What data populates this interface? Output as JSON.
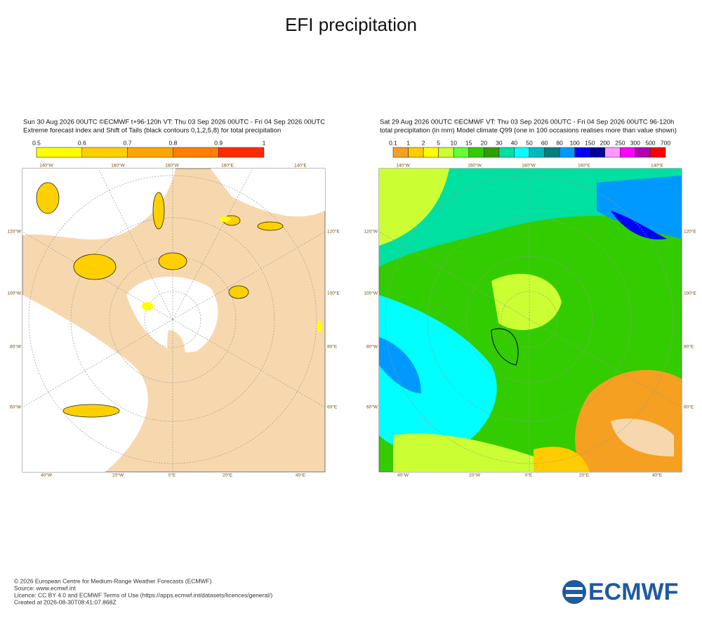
{
  "title": "EFI precipitation",
  "panels": [
    {
      "header": [
        "Sun 30 Aug 2026 00UTC ©ECMWF t+96-120h  VT: Thu 03 Sep 2026 00UTC - Fri 04 Sep 2026 00UTC",
        "Extreme forecast index and Shift of Tails (black contours 0,1,2,5,8) for total precipitation"
      ],
      "colorbar": {
        "labels": [
          "0.5",
          "0.6",
          "0.7",
          "0.8",
          "0.9",
          "1"
        ],
        "colors": [
          "#ffff00",
          "#ffd000",
          "#ffa500",
          "#ff7f00",
          "#ff2a00"
        ]
      },
      "lon_top": [
        "140°W",
        "160°W",
        "180°W",
        "160°E",
        "140°E"
      ],
      "lon_left": [
        "120°W",
        "100°W",
        "80°W",
        "60°W"
      ],
      "lon_right": [
        "120°E",
        "100°E",
        "80°E",
        "60°E"
      ],
      "lon_bottom": [
        "40°W",
        "20°W",
        "0°E",
        "20°E",
        "40°E"
      ]
    },
    {
      "header": [
        "Sat 29 Aug 2026 00UTC ©ECMWF VT: Thu 03 Sep 2026 00UTC - Fri 04 Sep 2026 00UTC   96-120h",
        "total precipitation (in mm)  Model climate Q99 (one in 100 occasions realises more than value shown)"
      ],
      "colorbar": {
        "labels": [
          "0.1",
          "1",
          "2",
          "5",
          "10",
          "15",
          "20",
          "30",
          "40",
          "50",
          "60",
          "80",
          "100",
          "150",
          "200",
          "250",
          "300",
          "500",
          "700"
        ],
        "colors": [
          "#f5a020",
          "#ffcc00",
          "#ffff00",
          "#ccff33",
          "#66ff33",
          "#33cc00",
          "#2f9e00",
          "#00e0a0",
          "#00ffff",
          "#00b8c0",
          "#008080",
          "#0099ff",
          "#0000ff",
          "#000099",
          "#ff99ff",
          "#ff00ff",
          "#b000b0",
          "#ff0000"
        ]
      },
      "lon_top": [
        "140°W",
        "160°W",
        "180°W",
        "160°E",
        "140°E"
      ],
      "lon_left": [
        "120°W",
        "100°W",
        "80°W",
        "60°W"
      ],
      "lon_right": [
        "120°E",
        "100°E",
        "80°E",
        "60°E"
      ],
      "lon_bottom": [
        "40°W",
        "20°W",
        "0°E",
        "20°E",
        "40°E"
      ]
    }
  ],
  "footer": [
    "© 2026 European Centre for Medium-Range Weather Forecasts (ECMWF)",
    "Source: www.ecmwf.int",
    "Licence: CC BY 4.0 and ECMWF Terms of Use (https://apps.ecmwf.int/datasets/licences/general/)",
    "Created at 2026-08-30T08:41:07.868Z"
  ],
  "logo": "ECMWF"
}
